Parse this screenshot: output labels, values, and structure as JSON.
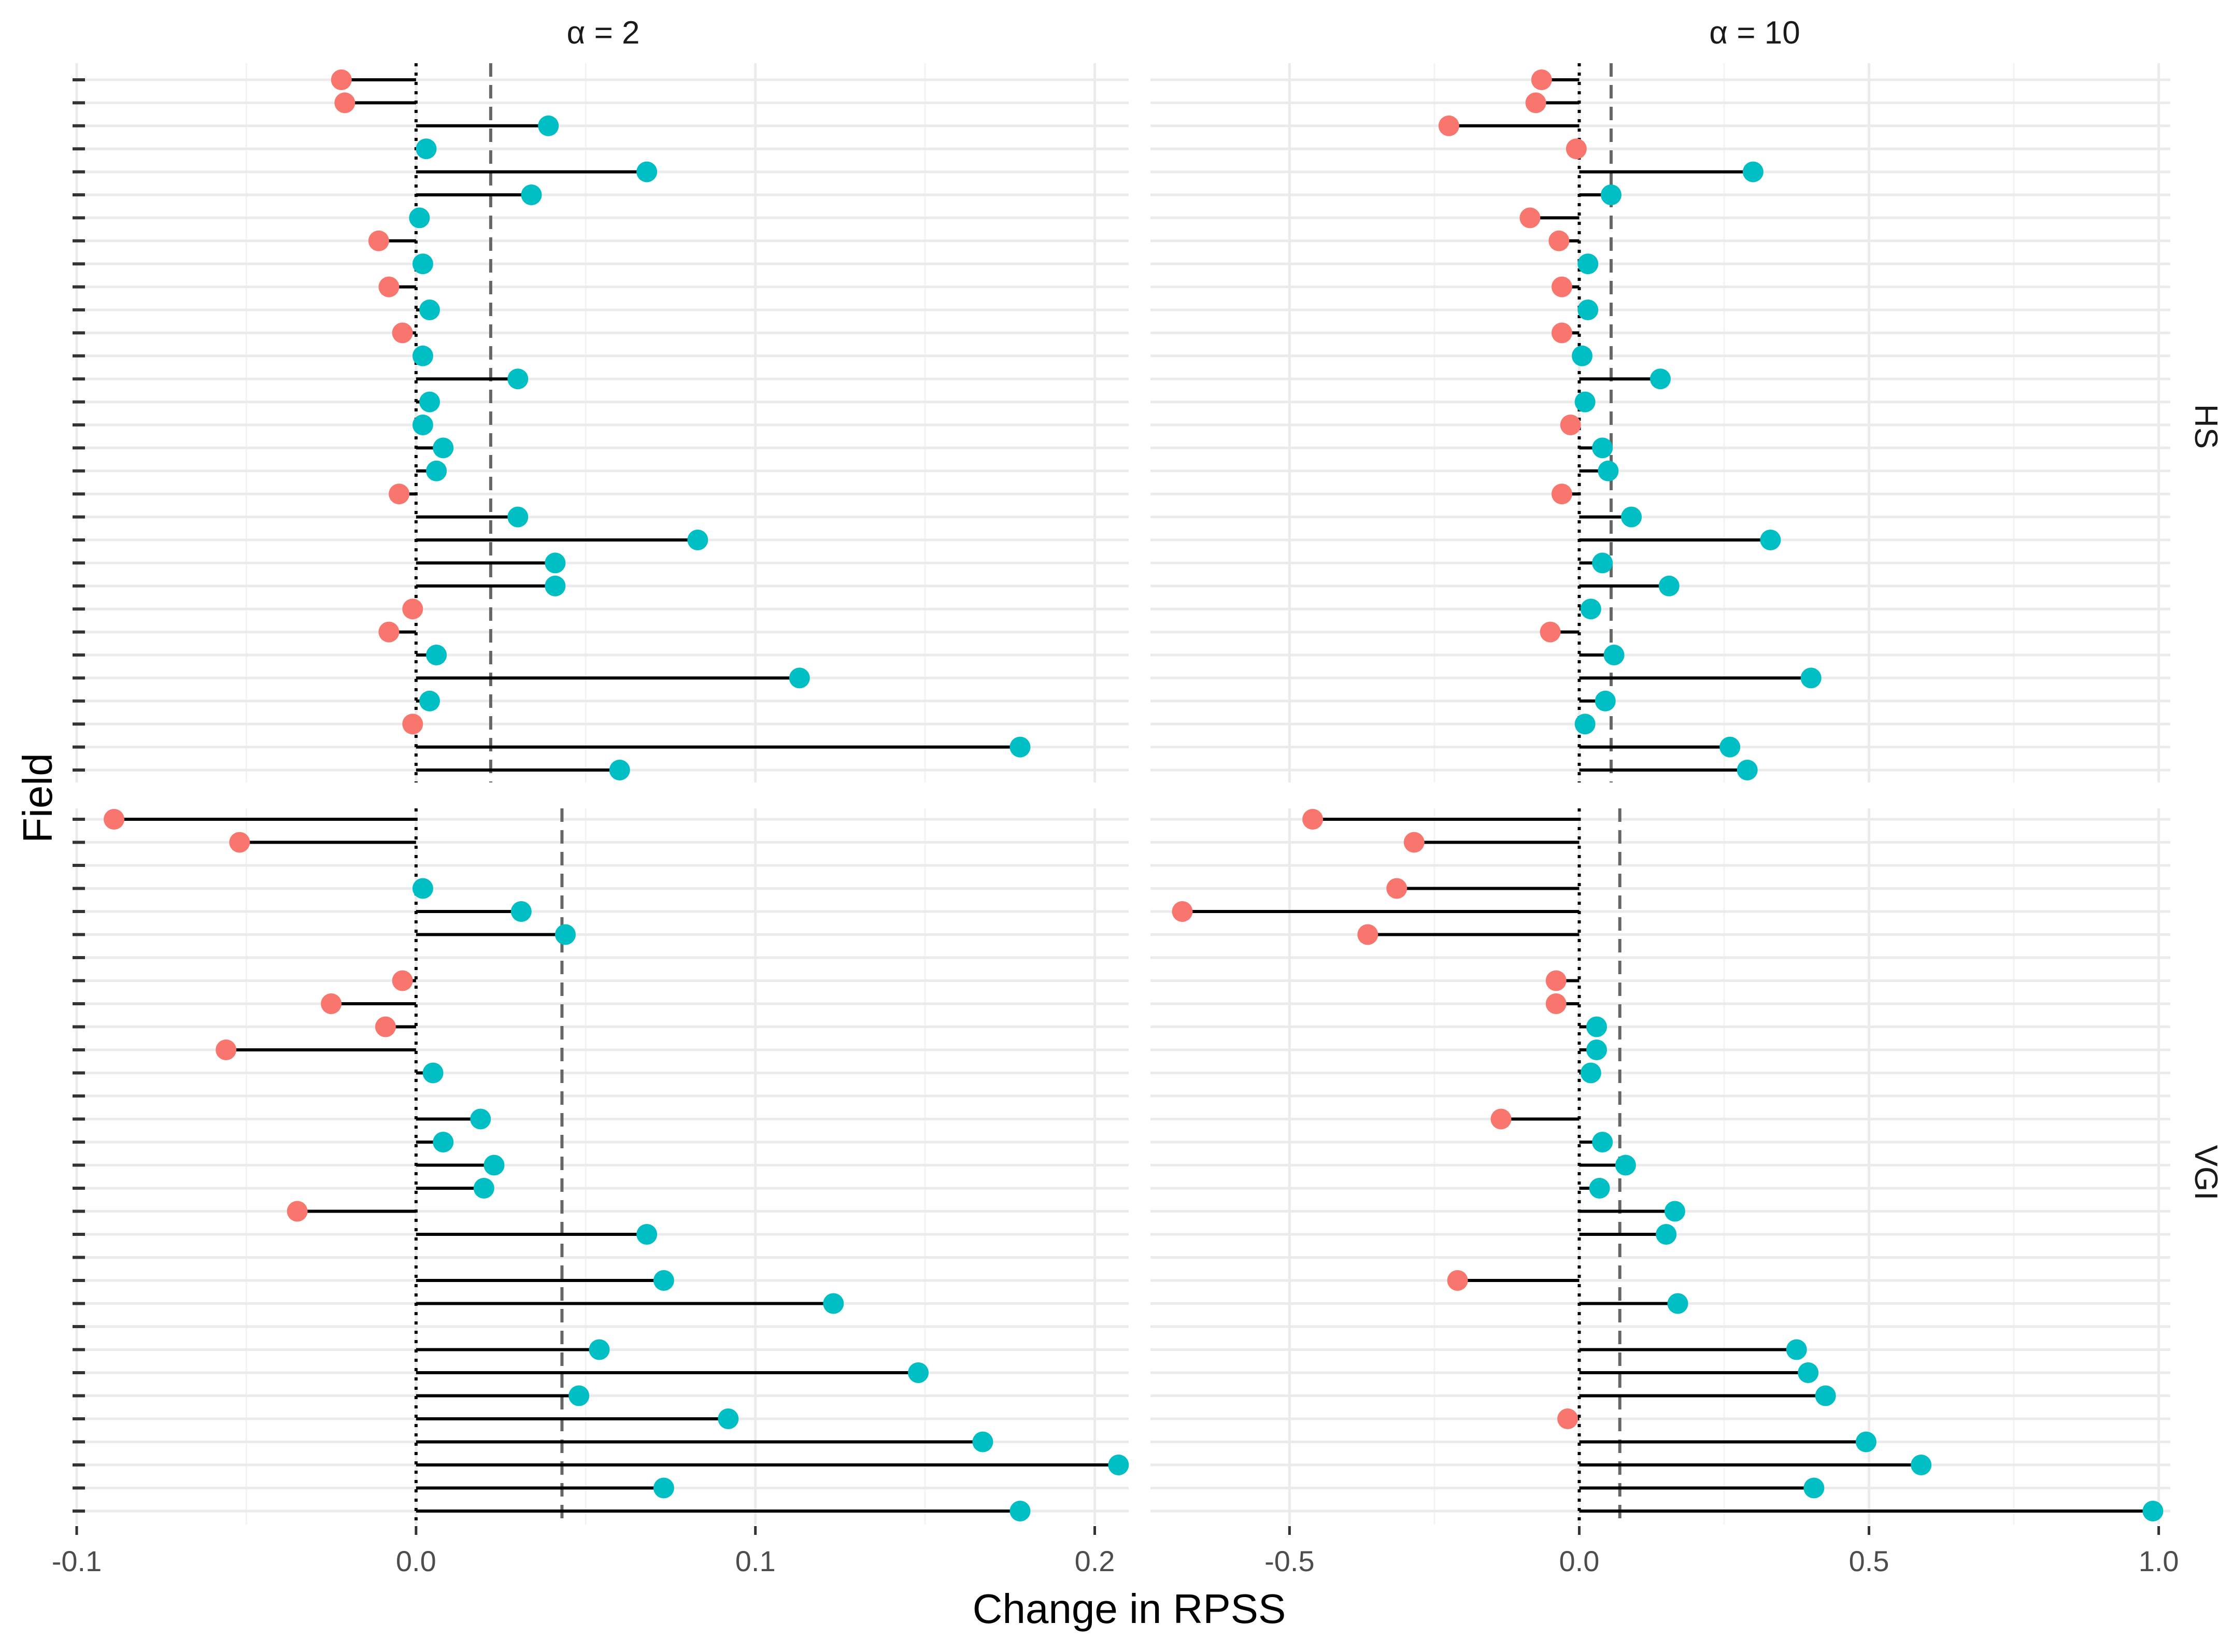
{
  "chart_data": {
    "type": "lollipop",
    "x_title": "Change in RPSS",
    "y_title": "Field",
    "colors": {
      "negative": "#F8766D",
      "positive": "#00BFC4",
      "stem": "#000000",
      "mean_line": "#666666",
      "grid": "#ebebeb"
    },
    "columns": [
      {
        "strip": "α = 2",
        "xlim": [
          -0.1,
          0.21
        ],
        "ticks": [
          -0.1,
          0.0,
          0.1,
          0.2
        ],
        "tick_labels": [
          "-0.1",
          "0.0",
          "0.1",
          "0.2"
        ]
      },
      {
        "strip": "α = 10",
        "xlim": [
          -0.74,
          1.02
        ],
        "ticks": [
          -0.5,
          0.0,
          0.5,
          1.0
        ],
        "tick_labels": [
          "-0.5",
          "0.0",
          "0.5",
          "1.0"
        ]
      }
    ],
    "rows": [
      {
        "strip": "HS",
        "n_fields": 31
      },
      {
        "strip": "VGI",
        "n_fields": 31
      }
    ],
    "panels": [
      {
        "column": "α = 2",
        "row": "HS",
        "mean": 0.022,
        "values": [
          -0.022,
          -0.021,
          0.039,
          0.003,
          0.068,
          0.034,
          0.001,
          -0.011,
          0.002,
          -0.008,
          0.004,
          -0.004,
          0.002,
          0.03,
          0.004,
          0.002,
          0.008,
          0.006,
          -0.005,
          0.03,
          0.083,
          0.041,
          0.041,
          -0.001,
          -0.008,
          0.006,
          0.113,
          0.004,
          -0.001,
          0.178,
          0.06
        ]
      },
      {
        "column": "α = 10",
        "row": "HS",
        "mean": 0.055,
        "values": [
          -0.065,
          -0.075,
          -0.225,
          -0.005,
          0.3,
          0.055,
          -0.085,
          -0.035,
          0.015,
          -0.03,
          0.015,
          -0.03,
          0.005,
          0.14,
          0.01,
          -0.015,
          0.04,
          0.05,
          -0.03,
          0.09,
          0.33,
          0.04,
          0.155,
          0.02,
          -0.05,
          0.06,
          0.4,
          0.045,
          0.01,
          0.26,
          0.29
        ]
      },
      {
        "column": "α = 2",
        "row": "VGI",
        "mean": 0.043,
        "values": [
          -0.089,
          -0.052,
          null,
          0.002,
          0.031,
          0.044,
          null,
          -0.004,
          -0.025,
          -0.009,
          -0.056,
          0.005,
          null,
          0.019,
          0.008,
          0.023,
          0.02,
          -0.035,
          0.068,
          null,
          0.073,
          0.123,
          null,
          0.054,
          0.148,
          0.048,
          0.092,
          0.167,
          0.207,
          0.073,
          0.178
        ]
      },
      {
        "column": "α = 10",
        "row": "VGI",
        "mean": 0.07,
        "values": [
          -0.46,
          -0.285,
          null,
          -0.315,
          -0.685,
          -0.365,
          null,
          -0.04,
          -0.04,
          0.03,
          0.03,
          0.02,
          null,
          -0.135,
          0.04,
          0.08,
          0.035,
          0.165,
          0.15,
          null,
          -0.21,
          0.17,
          null,
          0.375,
          0.395,
          0.425,
          -0.02,
          0.495,
          0.59,
          0.405,
          0.99
        ]
      }
    ]
  }
}
